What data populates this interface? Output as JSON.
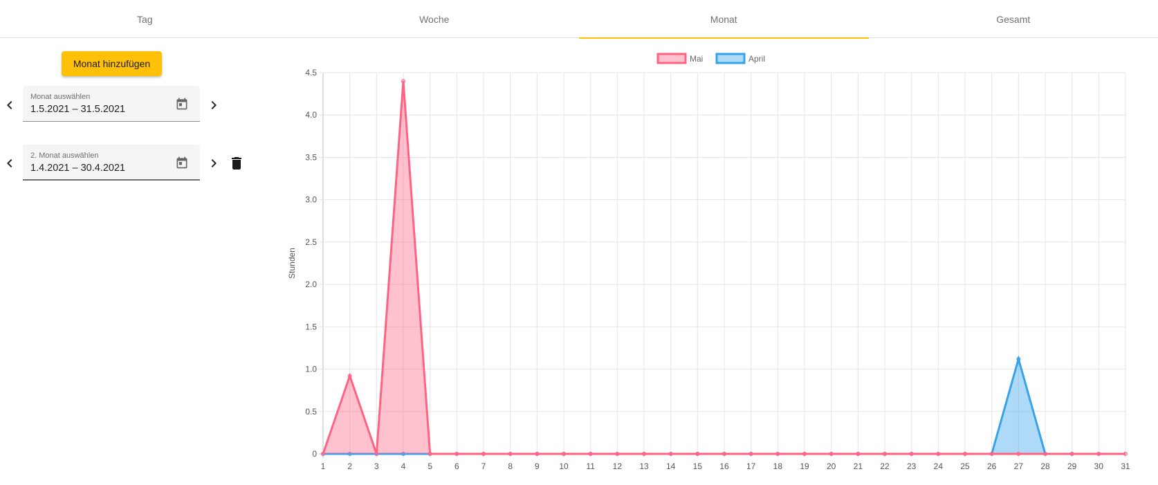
{
  "tabs": [
    {
      "label": "Tag",
      "active": false
    },
    {
      "label": "Woche",
      "active": false
    },
    {
      "label": "Monat",
      "active": true
    },
    {
      "label": "Gesamt",
      "active": false
    }
  ],
  "sidebar": {
    "add_button_label": "Monat hinzufügen",
    "month1": {
      "label": "Monat auswählen",
      "value": "1.5.2021 – 31.5.2021"
    },
    "month2": {
      "label": "2. Monat auswählen",
      "value": "1.4.2021 – 30.4.2021"
    }
  },
  "icons": {
    "prev": "chevron-left-icon",
    "next": "chevron-right-icon",
    "calendar": "calendar-icon",
    "delete": "trash-icon"
  },
  "colors": {
    "accent": "#ffc107",
    "series_mai": "#ff6384",
    "series_april": "#36a2eb"
  },
  "chart_data": {
    "type": "area",
    "ylabel": "Stunden",
    "xlabel": "",
    "ylim": [
      0,
      4.5
    ],
    "y_ticks": [
      "0",
      "0.5",
      "1.0",
      "1.5",
      "2.0",
      "2.5",
      "3.0",
      "3.5",
      "4.0",
      "4.5"
    ],
    "x": [
      1,
      2,
      3,
      4,
      5,
      6,
      7,
      8,
      9,
      10,
      11,
      12,
      13,
      14,
      15,
      16,
      17,
      18,
      19,
      20,
      21,
      22,
      23,
      24,
      25,
      26,
      27,
      28,
      29,
      30,
      31
    ],
    "grid": true,
    "legend_position": "top",
    "series": [
      {
        "name": "Mai",
        "color": "#ff6384",
        "fill": "rgba(255,99,132,0.4)",
        "values": [
          0,
          0.92,
          0,
          4.4,
          0,
          0,
          0,
          0,
          0,
          0,
          0,
          0,
          0,
          0,
          0,
          0,
          0,
          0,
          0,
          0,
          0,
          0,
          0,
          0,
          0,
          0,
          0,
          0,
          0,
          0,
          0
        ]
      },
      {
        "name": "April",
        "color": "#36a2eb",
        "fill": "rgba(54,162,235,0.4)",
        "values": [
          0,
          0,
          0,
          0,
          0,
          0,
          0,
          0,
          0,
          0,
          0,
          0,
          0,
          0,
          0,
          0,
          0,
          0,
          0,
          0,
          0,
          0,
          0,
          0,
          0,
          0,
          1.12,
          0,
          0,
          0,
          null
        ]
      }
    ]
  }
}
